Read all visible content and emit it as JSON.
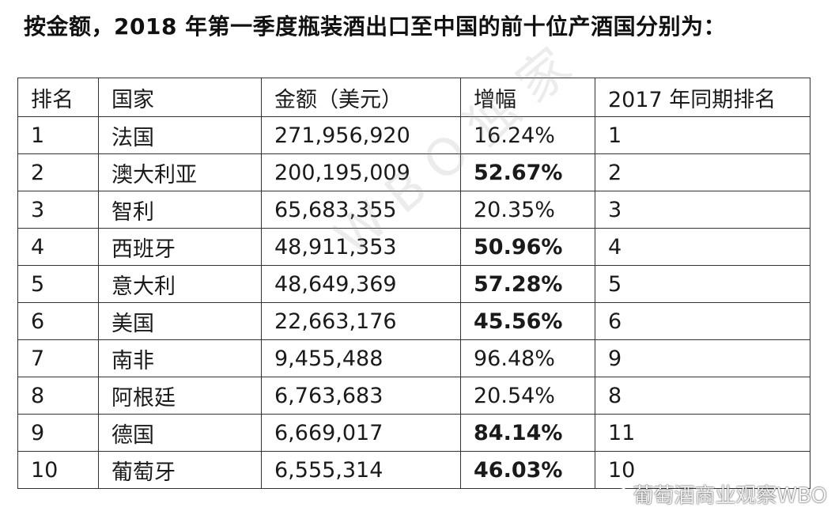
{
  "heading": "按金额，2018 年第一季度瓶装酒出口至中国的前十位产酒国分别为：",
  "table": {
    "headers": [
      "排名",
      "国家",
      "金额（美元）",
      "增幅",
      "2017 年同期排名"
    ],
    "rows": [
      {
        "rank": "1",
        "country": "法国",
        "amount": "271,956,920",
        "growth": "16.24%",
        "rank2017": "1",
        "growth_bold": false
      },
      {
        "rank": "2",
        "country": "澳大利亚",
        "amount": "200,195,009",
        "growth": "52.67%",
        "rank2017": "2",
        "growth_bold": true
      },
      {
        "rank": "3",
        "country": "智利",
        "amount": "65,683,355",
        "growth": "20.35%",
        "rank2017": "3",
        "growth_bold": false
      },
      {
        "rank": "4",
        "country": "西班牙",
        "amount": "48,911,353",
        "growth": "50.96%",
        "rank2017": "4",
        "growth_bold": true
      },
      {
        "rank": "5",
        "country": "意大利",
        "amount": "48,649,369",
        "growth": "57.28%",
        "rank2017": "5",
        "growth_bold": true
      },
      {
        "rank": "6",
        "country": "美国",
        "amount": "22,663,176",
        "growth": "45.56%",
        "rank2017": "6",
        "growth_bold": true
      },
      {
        "rank": "7",
        "country": "南非",
        "amount": "9,455,488",
        "growth": "96.48%",
        "rank2017": "9",
        "growth_bold": false
      },
      {
        "rank": "8",
        "country": "阿根廷",
        "amount": "6,763,683",
        "growth": "20.54%",
        "rank2017": "8",
        "growth_bold": false
      },
      {
        "rank": "9",
        "country": "德国",
        "amount": "6,669,017",
        "growth": "84.14%",
        "rank2017": "11",
        "growth_bold": true
      },
      {
        "rank": "10",
        "country": "葡萄牙",
        "amount": "6,555,314",
        "growth": "46.03%",
        "rank2017": "10",
        "growth_bold": true
      }
    ]
  },
  "watermark": "WBO独家",
  "weibo_watermark": "葡萄酒商业观察WBO",
  "colors": {
    "border": "#333333",
    "text": "#1a1a1a"
  }
}
